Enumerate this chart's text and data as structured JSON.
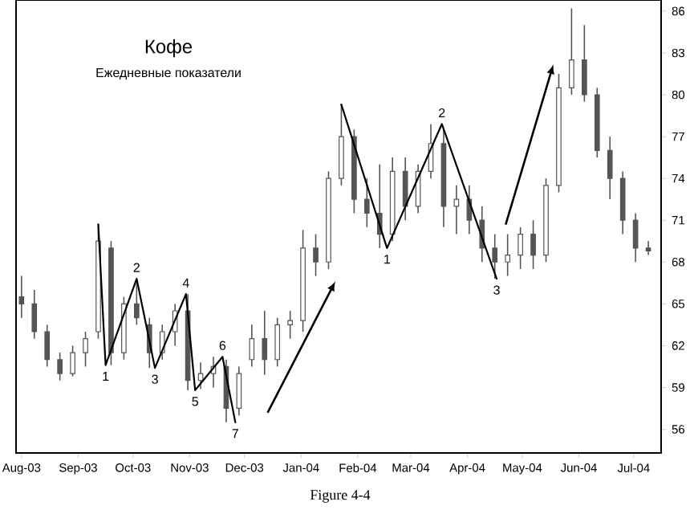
{
  "chart_data": {
    "type": "candlestick",
    "title": "Кофе",
    "subtitle": "Ежедневные показатели",
    "color": "#555555",
    "xlim": [
      "2003-07-29",
      "2004-07-16"
    ],
    "ylim": [
      54.3,
      86.8
    ],
    "xticks": [
      {
        "value": "2003-08-01",
        "label": "Aug-03"
      },
      {
        "value": "2003-09-01",
        "label": "Sep-03"
      },
      {
        "value": "2003-10-01",
        "label": "Oct-03"
      },
      {
        "value": "2003-11-01",
        "label": "Nov-03"
      },
      {
        "value": "2003-12-01",
        "label": "Dec-03"
      },
      {
        "value": "2004-01-01",
        "label": "Jan-04"
      },
      {
        "value": "2004-02-01",
        "label": "Feb-04"
      },
      {
        "value": "2004-03-01",
        "label": "Mar-04"
      },
      {
        "value": "2004-04-01",
        "label": "Apr-04"
      },
      {
        "value": "2004-05-01",
        "label": "May-04"
      },
      {
        "value": "2004-06-01",
        "label": "Jun-04"
      },
      {
        "value": "2004-07-01",
        "label": "Jul-04"
      }
    ],
    "yticks": [
      56,
      59,
      62,
      65,
      68,
      71,
      74,
      77,
      80,
      83,
      86
    ],
    "x": [
      "2003-08-01",
      "2003-08-08",
      "2003-08-15",
      "2003-08-22",
      "2003-08-29",
      "2003-09-05",
      "2003-09-12",
      "2003-09-19",
      "2003-09-26",
      "2003-10-03",
      "2003-10-10",
      "2003-10-17",
      "2003-10-24",
      "2003-10-31",
      "2003-11-07",
      "2003-11-14",
      "2003-11-21",
      "2003-11-28",
      "2003-12-05",
      "2003-12-12",
      "2003-12-19",
      "2003-12-26",
      "2004-01-02",
      "2004-01-09",
      "2004-01-16",
      "2004-01-23",
      "2004-01-30",
      "2004-02-06",
      "2004-02-13",
      "2004-02-20",
      "2004-02-27",
      "2004-03-05",
      "2004-03-12",
      "2004-03-19",
      "2004-03-26",
      "2004-04-02",
      "2004-04-09",
      "2004-04-16",
      "2004-04-23",
      "2004-04-30",
      "2004-05-07",
      "2004-05-14",
      "2004-05-21",
      "2004-05-28",
      "2004-06-04",
      "2004-06-11",
      "2004-06-18",
      "2004-06-25",
      "2004-07-02",
      "2004-07-09"
    ],
    "ohlc": [
      [
        65.5,
        67.0,
        64.0,
        65.0
      ],
      [
        65.0,
        66.0,
        62.5,
        63.0
      ],
      [
        63.0,
        63.5,
        60.5,
        61.0
      ],
      [
        61.0,
        61.5,
        59.5,
        60.0
      ],
      [
        60.0,
        62.0,
        59.8,
        61.5
      ],
      [
        61.5,
        63.0,
        60.5,
        62.5
      ],
      [
        63.0,
        70.7,
        62.5,
        69.5
      ],
      [
        69.0,
        69.5,
        60.6,
        61.5
      ],
      [
        61.5,
        65.5,
        61.0,
        65.0
      ],
      [
        65.0,
        66.8,
        63.5,
        64.0
      ],
      [
        63.5,
        64.0,
        60.4,
        61.5
      ],
      [
        61.5,
        63.5,
        61.0,
        63.0
      ],
      [
        63.0,
        65.0,
        62.0,
        64.5
      ],
      [
        64.5,
        65.7,
        58.8,
        59.5
      ],
      [
        59.5,
        60.8,
        58.9,
        60.0
      ],
      [
        60.0,
        61.2,
        59.0,
        60.5
      ],
      [
        60.5,
        61.0,
        56.5,
        57.5
      ],
      [
        57.5,
        60.5,
        57.0,
        60.0
      ],
      [
        61.0,
        63.5,
        60.5,
        62.5
      ],
      [
        62.5,
        64.5,
        59.9,
        61.0
      ],
      [
        61.0,
        64.0,
        60.5,
        63.5
      ],
      [
        63.5,
        64.5,
        62.5,
        63.8
      ],
      [
        63.8,
        70.3,
        63.0,
        69.0
      ],
      [
        69.0,
        70.0,
        67.0,
        68.0
      ],
      [
        68.0,
        74.5,
        67.5,
        74.0
      ],
      [
        74.0,
        79.3,
        73.5,
        77.0
      ],
      [
        77.0,
        77.5,
        71.5,
        72.5
      ],
      [
        72.5,
        74.0,
        70.5,
        71.5
      ],
      [
        71.5,
        75.0,
        69.0,
        70.0
      ],
      [
        70.0,
        75.5,
        69.5,
        74.5
      ],
      [
        74.5,
        75.5,
        71.0,
        72.0
      ],
      [
        72.0,
        75.0,
        71.5,
        74.5
      ],
      [
        74.5,
        77.9,
        74.0,
        76.5
      ],
      [
        76.5,
        77.5,
        70.5,
        72.0
      ],
      [
        72.0,
        73.5,
        70.0,
        72.5
      ],
      [
        72.5,
        73.5,
        70.0,
        71.0
      ],
      [
        71.0,
        72.0,
        68.0,
        69.0
      ],
      [
        69.0,
        70.0,
        66.8,
        68.0
      ],
      [
        68.0,
        70.0,
        67.0,
        68.5
      ],
      [
        68.5,
        70.5,
        67.5,
        70.0
      ],
      [
        70.0,
        71.0,
        67.5,
        68.5
      ],
      [
        68.5,
        74.0,
        68.0,
        73.5
      ],
      [
        73.5,
        81.5,
        73.0,
        80.5
      ],
      [
        80.5,
        86.2,
        80.0,
        82.5
      ],
      [
        82.5,
        85.0,
        79.5,
        80.0
      ],
      [
        80.0,
        80.5,
        75.5,
        76.0
      ],
      [
        76.0,
        77.0,
        72.5,
        74.0
      ],
      [
        74.0,
        74.5,
        70.0,
        71.0
      ],
      [
        71.0,
        71.5,
        68.0,
        69.0
      ],
      [
        69.0,
        69.5,
        68.5,
        68.8
      ]
    ],
    "series": [
      {
        "type": "line",
        "color": "#000000",
        "x": [
          "2003-09-12",
          "2003-09-16",
          "2003-10-03",
          "2003-10-13",
          "2003-10-30",
          "2003-11-04",
          "2003-11-19",
          "2003-11-26"
        ],
        "values": [
          70.7,
          60.6,
          66.8,
          60.4,
          65.7,
          58.8,
          61.2,
          56.5
        ]
      },
      {
        "type": "line",
        "color": "#000000",
        "x": [
          "2004-01-23",
          "2004-02-17",
          "2004-03-18",
          "2004-04-17"
        ],
        "values": [
          79.3,
          69.0,
          77.9,
          66.8
        ]
      }
    ],
    "annotations": [
      {
        "text": "1",
        "x": "2003-09-16",
        "y": 60.6
      },
      {
        "text": "2",
        "x": "2003-10-03",
        "y": 66.8
      },
      {
        "text": "3",
        "x": "2003-10-13",
        "y": 60.4
      },
      {
        "text": "4",
        "x": "2003-10-30",
        "y": 65.7
      },
      {
        "text": "5",
        "x": "2003-11-04",
        "y": 58.8
      },
      {
        "text": "6",
        "x": "2003-11-19",
        "y": 61.2
      },
      {
        "text": "7",
        "x": "2003-11-26",
        "y": 56.5
      },
      {
        "text": "1",
        "x": "2004-02-17",
        "y": 69.0
      },
      {
        "text": "2",
        "x": "2004-03-18",
        "y": 77.9
      },
      {
        "text": "3",
        "x": "2004-04-17",
        "y": 66.8
      },
      "Figure 4-4"
    ]
  }
}
